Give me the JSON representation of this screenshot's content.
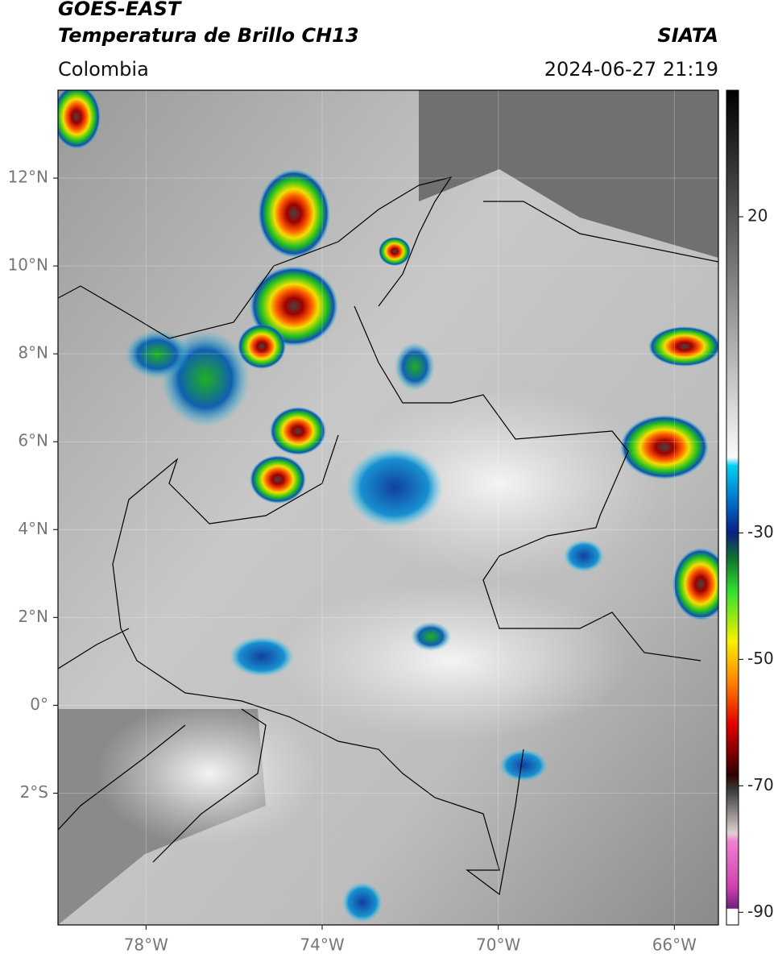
{
  "header": {
    "title": "GOES-EAST",
    "subtitle": "Temperatura de Brillo CH13",
    "source": "SIATA",
    "region": "Colombia",
    "timestamp": "2024-06-27 21:19"
  },
  "map": {
    "xlim": [
      -80,
      -65
    ],
    "ylim": [
      -5,
      14
    ],
    "xticks": [
      {
        "value": -78,
        "label": "78°W"
      },
      {
        "value": -74,
        "label": "74°W"
      },
      {
        "value": -70,
        "label": "70°W"
      },
      {
        "value": -66,
        "label": "66°W"
      }
    ],
    "yticks": [
      {
        "value": 12,
        "label": "12°N"
      },
      {
        "value": 10,
        "label": "10°N"
      },
      {
        "value": 8,
        "label": "8°N"
      },
      {
        "value": 6,
        "label": "6°N"
      },
      {
        "value": 4,
        "label": "4°N"
      },
      {
        "value": 2,
        "label": "2°N"
      },
      {
        "value": 0,
        "label": "0°"
      },
      {
        "value": -2,
        "label": "2°S"
      }
    ],
    "grid": true
  },
  "colorbar": {
    "lim": [
      -92,
      40
    ],
    "ticks": [
      20,
      -30,
      -50,
      -70,
      -90
    ]
  }
}
